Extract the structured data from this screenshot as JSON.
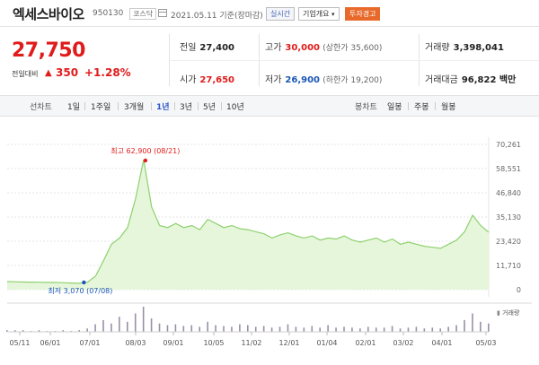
{
  "header": {
    "name": "엑세스바이오",
    "code": "950130",
    "market": "코스닥",
    "date": "2021.05.11 기준(장마감)",
    "live_label": "실시간",
    "info_label": "기업개요",
    "warn_label": "투자경고"
  },
  "price": {
    "current": "27,750",
    "change_label": "전일대비",
    "change_arrow": "▲",
    "change_value": "350",
    "change_pct": "+1.28%"
  },
  "stats": {
    "prev_close_label": "전일",
    "prev_close": "27,400",
    "high_label": "고가",
    "high": "30,000",
    "upper_limit": "(상한가 35,600)",
    "volume_label": "거래량",
    "volume": "3,398,041",
    "open_label": "시가",
    "open": "27,650",
    "low_label": "저가",
    "low": "26,900",
    "lower_limit": "(하한가 19,200)",
    "amount_label": "거래대금",
    "amount": "96,822 백만"
  },
  "tabs": {
    "line_group": "선차트",
    "line_items": [
      "1일",
      "1주일",
      "3개월",
      "1년",
      "3년",
      "5년",
      "10년"
    ],
    "line_selected": "1년",
    "candle_group": "봉차트",
    "candle_items": [
      "일봉",
      "주봉",
      "월봉"
    ]
  },
  "chart_data": {
    "type": "area",
    "y_ticks": [
      "70,261",
      "58,551",
      "46,840",
      "35,130",
      "23,420",
      "11,710",
      "0"
    ],
    "ylim": [
      0,
      70261
    ],
    "x_ticks": [
      "05/11",
      "06/01",
      "07/01",
      "08/03",
      "09/01",
      "10/05",
      "11/02",
      "12/01",
      "01/04",
      "02/01",
      "03/02",
      "04/01",
      "05/03"
    ],
    "high_label": "최고 62,900 (08/21)",
    "low_label": "최저 3,070 (07/08)",
    "volume_label": "거래량",
    "x": [
      "05/11",
      "05/18",
      "05/25",
      "06/01",
      "06/08",
      "06/15",
      "06/22",
      "06/29",
      "07/06",
      "07/08",
      "07/15",
      "07/22",
      "07/27",
      "07/31",
      "08/05",
      "08/10",
      "08/17",
      "08/21",
      "08/24",
      "08/28",
      "09/03",
      "09/08",
      "09/14",
      "09/18",
      "09/24",
      "10/05",
      "10/09",
      "10/15",
      "10/21",
      "10/27",
      "11/02",
      "11/06",
      "11/12",
      "11/18",
      "11/24",
      "12/01",
      "12/07",
      "12/14",
      "12/21",
      "12/28",
      "01/04",
      "01/11",
      "01/18",
      "01/25",
      "02/01",
      "02/08",
      "02/15",
      "02/22",
      "03/02",
      "03/08",
      "03/15",
      "03/22",
      "03/29",
      "04/05",
      "04/12",
      "04/19",
      "04/23",
      "04/28",
      "05/03",
      "05/07",
      "05/11"
    ],
    "values": [
      3900,
      3800,
      3700,
      3650,
      3600,
      3500,
      3450,
      3400,
      3200,
      3070,
      3600,
      6500,
      14000,
      22000,
      25000,
      30000,
      44000,
      62900,
      40000,
      31000,
      30000,
      32000,
      30000,
      31000,
      29000,
      34000,
      32000,
      30000,
      31000,
      29500,
      29000,
      28000,
      27000,
      25000,
      26500,
      27500,
      26000,
      25000,
      26000,
      24000,
      25000,
      24500,
      26000,
      24000,
      23000,
      24000,
      25000,
      23000,
      24500,
      22000,
      23000,
      22000,
      21000,
      20500,
      20000,
      22000,
      24000,
      28000,
      36000,
      31000,
      27750
    ],
    "volume": [
      2,
      2,
      2,
      1,
      2,
      1,
      1,
      2,
      1,
      2,
      4,
      9,
      14,
      10,
      18,
      12,
      22,
      30,
      16,
      10,
      8,
      9,
      7,
      8,
      6,
      12,
      8,
      7,
      6,
      9,
      8,
      6,
      7,
      5,
      6,
      9,
      6,
      5,
      7,
      5,
      8,
      5,
      6,
      5,
      4,
      6,
      5,
      5,
      7,
      4,
      5,
      6,
      4,
      5,
      4,
      6,
      8,
      14,
      22,
      12,
      10
    ],
    "colors": {
      "line": "#8ed16e",
      "fill": "#e6f6db",
      "high_marker": "#e01b1b",
      "low_marker": "#1a56b5"
    }
  }
}
